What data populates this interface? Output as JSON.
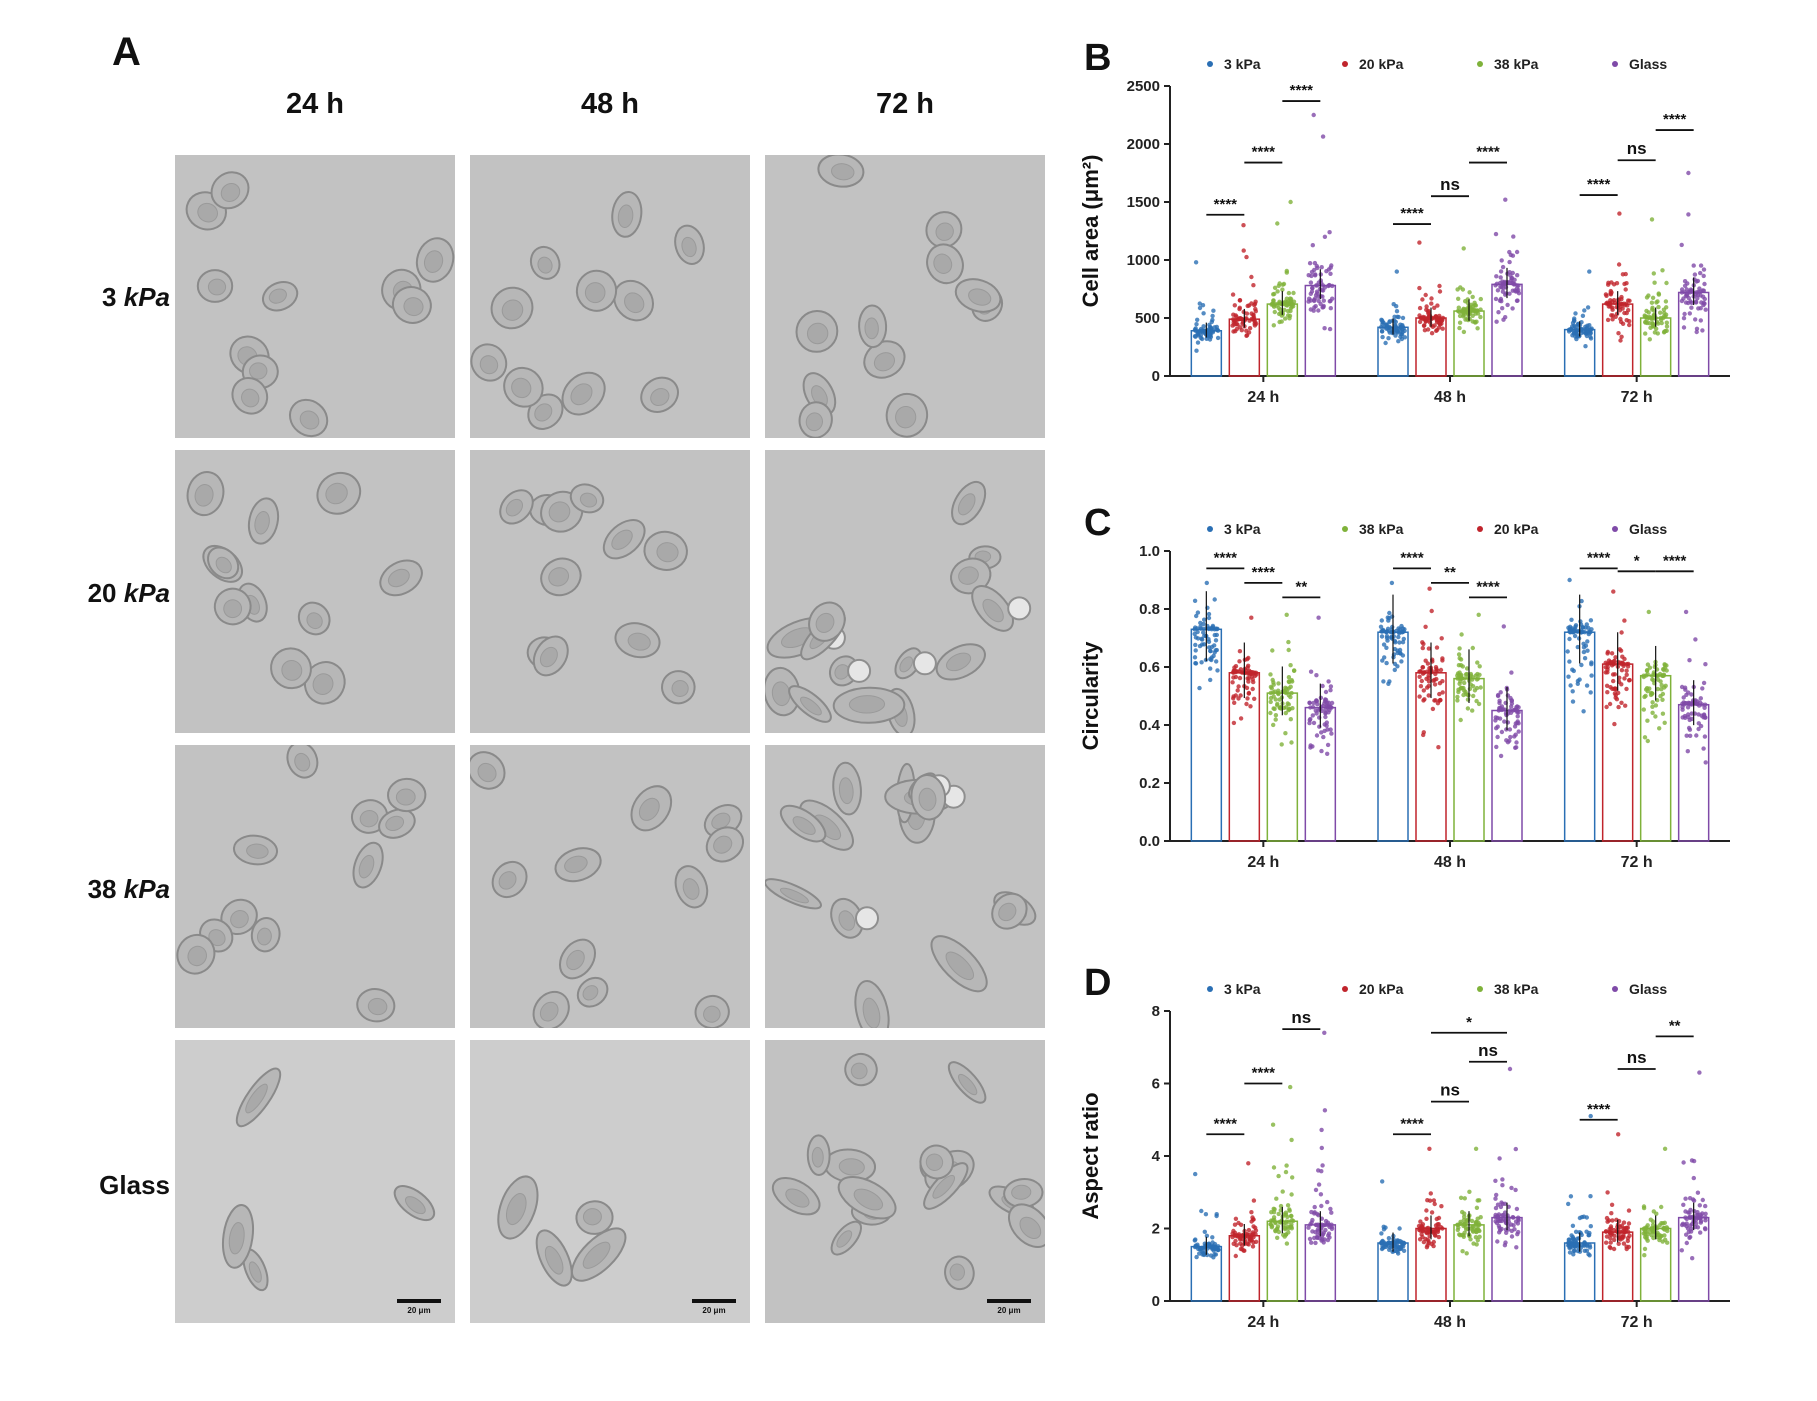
{
  "panels": {
    "a": "A",
    "b": "B",
    "c": "C",
    "d": "D"
  },
  "microscopy": {
    "columns": [
      "24 h",
      "48 h",
      "72 h"
    ],
    "rows": [
      {
        "value": "3",
        "unit": "kPa"
      },
      {
        "value": "20",
        "unit": "kPa"
      },
      {
        "value": "38",
        "unit": "kPa"
      },
      {
        "value": "Glass",
        "unit": ""
      }
    ],
    "scale_bar": "20 μm"
  },
  "colors": {
    "s3kpa": "#2a6fb4",
    "s20kpa": "#c0242c",
    "s38kpa": "#7fb23a",
    "glass": "#7f4aa8"
  },
  "chart_data": [
    {
      "id": "B",
      "type": "bar",
      "ylabel": "Cell area (μm²)",
      "ylim": [
        0,
        2500
      ],
      "yticks": [
        0,
        500,
        1000,
        1500,
        2000,
        2500
      ],
      "categories": [
        "24 h",
        "48 h",
        "72 h"
      ],
      "legend": [
        "3 kPa",
        "20 kPa",
        "38 kPa",
        "Glass"
      ],
      "legend_placement": "top",
      "series": [
        {
          "name": "3 kPa",
          "values": [
            390,
            420,
            400
          ],
          "spread": [
            [
              180,
              980
            ],
            [
              200,
              900
            ],
            [
              210,
              900
            ]
          ],
          "color": "#2a6fb4"
        },
        {
          "name": "20 kPa",
          "values": [
            490,
            500,
            620
          ],
          "spread": [
            [
              220,
              1300
            ],
            [
              240,
              1150
            ],
            [
              230,
              1400
            ]
          ],
          "color": "#c0242c"
        },
        {
          "name": "38 kPa",
          "values": [
            620,
            560,
            500
          ],
          "spread": [
            [
              260,
              1500
            ],
            [
              250,
              1100
            ],
            [
              240,
              1350
            ]
          ],
          "color": "#7fb23a"
        },
        {
          "name": "Glass",
          "values": [
            780,
            790,
            720
          ],
          "spread": [
            [
              280,
              2250
            ],
            [
              300,
              1520
            ],
            [
              300,
              1750
            ]
          ],
          "color": "#7f4aa8"
        }
      ],
      "significance": [
        {
          "g": 0,
          "a": 0,
          "b": 1,
          "y": 1390,
          "label": "****"
        },
        {
          "g": 0,
          "a": 1,
          "b": 2,
          "y": 1840,
          "label": "****"
        },
        {
          "g": 0,
          "a": 2,
          "b": 3,
          "y": 2370,
          "label": "****"
        },
        {
          "g": 1,
          "a": 0,
          "b": 1,
          "y": 1310,
          "label": "****"
        },
        {
          "g": 1,
          "a": 1,
          "b": 2,
          "y": 1550,
          "label": "ns"
        },
        {
          "g": 1,
          "a": 2,
          "b": 3,
          "y": 1840,
          "label": "****"
        },
        {
          "g": 2,
          "a": 0,
          "b": 1,
          "y": 1560,
          "label": "****"
        },
        {
          "g": 2,
          "a": 1,
          "b": 2,
          "y": 1860,
          "label": "ns"
        },
        {
          "g": 2,
          "a": 2,
          "b": 3,
          "y": 2120,
          "label": "****"
        }
      ]
    },
    {
      "id": "C",
      "type": "bar",
      "ylabel": "Circularity",
      "ylim": [
        0,
        1.0
      ],
      "yticks": [
        0.0,
        0.2,
        0.4,
        0.6,
        0.8,
        1.0
      ],
      "categories": [
        "24 h",
        "48 h",
        "72 h"
      ],
      "legend": [
        "3 kPa",
        "38 kPa",
        "20 kPa",
        "Glass"
      ],
      "legend_placement": "top",
      "series": [
        {
          "name": "3 kPa",
          "values": [
            0.73,
            0.72,
            0.72
          ],
          "spread": [
            [
              0.42,
              0.89
            ],
            [
              0.41,
              0.89
            ],
            [
              0.28,
              0.9
            ]
          ],
          "color": "#2a6fb4"
        },
        {
          "name": "20 kPa",
          "values": [
            0.58,
            0.58,
            0.61
          ],
          "spread": [
            [
              0.3,
              0.77
            ],
            [
              0.23,
              0.87
            ],
            [
              0.24,
              0.86
            ]
          ],
          "color": "#c0242c"
        },
        {
          "name": "38 kPa",
          "values": [
            0.51,
            0.56,
            0.57
          ],
          "spread": [
            [
              0.2,
              0.78
            ],
            [
              0.26,
              0.78
            ],
            [
              0.19,
              0.79
            ]
          ],
          "color": "#7fb23a"
        },
        {
          "name": "Glass",
          "values": [
            0.46,
            0.45,
            0.47
          ],
          "spread": [
            [
              0.18,
              0.77
            ],
            [
              0.16,
              0.74
            ],
            [
              0.21,
              0.79
            ]
          ],
          "color": "#7f4aa8"
        }
      ],
      "significance": [
        {
          "g": 0,
          "a": 0,
          "b": 1,
          "y": 0.94,
          "label": "****"
        },
        {
          "g": 0,
          "a": 1,
          "b": 2,
          "y": 0.89,
          "label": "****"
        },
        {
          "g": 0,
          "a": 2,
          "b": 3,
          "y": 0.84,
          "label": "**"
        },
        {
          "g": 1,
          "a": 0,
          "b": 1,
          "y": 0.94,
          "label": "****"
        },
        {
          "g": 1,
          "a": 1,
          "b": 2,
          "y": 0.89,
          "label": "**"
        },
        {
          "g": 1,
          "a": 2,
          "b": 3,
          "y": 0.84,
          "label": "****"
        },
        {
          "g": 2,
          "a": 0,
          "b": 1,
          "y": 0.94,
          "label": "****"
        },
        {
          "g": 2,
          "a": 1,
          "b": 2,
          "y": 0.93,
          "label": "*"
        },
        {
          "g": 2,
          "a": 2,
          "b": 3,
          "y": 0.93,
          "label": "****"
        }
      ]
    },
    {
      "id": "D",
      "type": "bar",
      "ylabel": "Aspect ratio",
      "ylim": [
        0,
        8
      ],
      "yticks": [
        0,
        2,
        4,
        6,
        8
      ],
      "categories": [
        "24 h",
        "48 h",
        "72 h"
      ],
      "legend": [
        "3 kPa",
        "20 kPa",
        "38 kPa",
        "Glass"
      ],
      "legend_placement": "top",
      "series": [
        {
          "name": "3 kPa",
          "values": [
            1.5,
            1.6,
            1.6
          ],
          "spread": [
            [
              1.0,
              3.5
            ],
            [
              1.0,
              3.3
            ],
            [
              1.0,
              5.1
            ]
          ],
          "color": "#2a6fb4"
        },
        {
          "name": "20 kPa",
          "values": [
            1.8,
            2.0,
            1.9
          ],
          "spread": [
            [
              1.0,
              3.8
            ],
            [
              1.0,
              4.2
            ],
            [
              1.0,
              4.6
            ]
          ],
          "color": "#c0242c"
        },
        {
          "name": "38 kPa",
          "values": [
            2.2,
            2.1,
            2.0
          ],
          "spread": [
            [
              1.0,
              5.9
            ],
            [
              1.0,
              4.2
            ],
            [
              1.0,
              4.2
            ]
          ],
          "color": "#7fb23a"
        },
        {
          "name": "Glass",
          "values": [
            2.1,
            2.3,
            2.3
          ],
          "spread": [
            [
              1.0,
              7.4
            ],
            [
              1.0,
              6.4
            ],
            [
              1.0,
              6.3
            ]
          ],
          "color": "#7f4aa8"
        }
      ],
      "significance": [
        {
          "g": 0,
          "a": 0,
          "b": 1,
          "y": 4.6,
          "label": "****"
        },
        {
          "g": 0,
          "a": 1,
          "b": 2,
          "y": 6.0,
          "label": "****"
        },
        {
          "g": 0,
          "a": 2,
          "b": 3,
          "y": 7.5,
          "label": "ns"
        },
        {
          "g": 1,
          "a": 0,
          "b": 1,
          "y": 4.6,
          "label": "****"
        },
        {
          "g": 1,
          "a": 1,
          "b": 2,
          "y": 5.5,
          "label": "ns"
        },
        {
          "g": 1,
          "a": 2,
          "b": 3,
          "y": 6.6,
          "label": "ns"
        },
        {
          "g": 1,
          "a": 1,
          "b": 3,
          "y": 7.4,
          "label": "*"
        },
        {
          "g": 2,
          "a": 0,
          "b": 1,
          "y": 5.0,
          "label": "****"
        },
        {
          "g": 2,
          "a": 1,
          "b": 2,
          "y": 6.4,
          "label": "ns"
        },
        {
          "g": 2,
          "a": 2,
          "b": 3,
          "y": 7.3,
          "label": "**"
        }
      ]
    }
  ]
}
